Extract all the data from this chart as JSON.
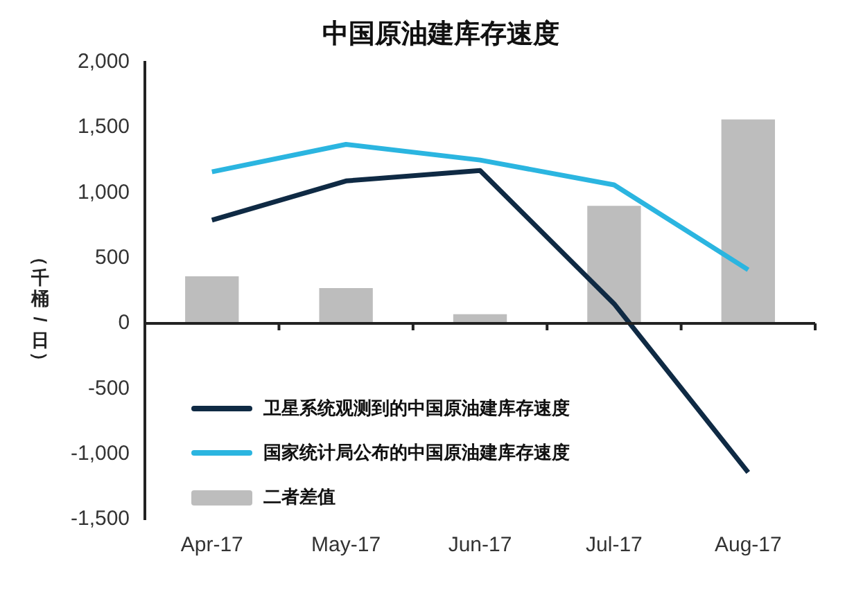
{
  "chart_data": {
    "type": "bar",
    "title": "中国原油建库存速度",
    "ylabel": "（千桶/日）",
    "categories": [
      "Apr-17",
      "May-17",
      "Jun-17",
      "Jul-17",
      "Aug-17"
    ],
    "series": [
      {
        "name": "卫星系统观测到的中国原油建库存速度",
        "type": "line",
        "color": "#0f2a44",
        "values": [
          790,
          1090,
          1170,
          150,
          -1140
        ]
      },
      {
        "name": "国家统计局公布的中国原油建库存速度",
        "type": "line",
        "color": "#2bb5e0",
        "values": [
          1160,
          1370,
          1250,
          1060,
          410
        ]
      },
      {
        "name": "二者差值",
        "color": "#bdbdbd",
        "values": [
          360,
          270,
          70,
          900,
          1560
        ]
      }
    ],
    "ylim": [
      -1500,
      2000
    ],
    "yticks": [
      {
        "value": -1500,
        "label": "-1,500"
      },
      {
        "value": -1000,
        "label": "-1,000"
      },
      -500,
      0,
      500,
      {
        "value": 1000,
        "label": "1,000"
      },
      {
        "value": 1500,
        "label": "1,500"
      },
      {
        "value": 2000,
        "label": "2,000"
      }
    ],
    "legend": "bottom left",
    "marker": "none"
  }
}
